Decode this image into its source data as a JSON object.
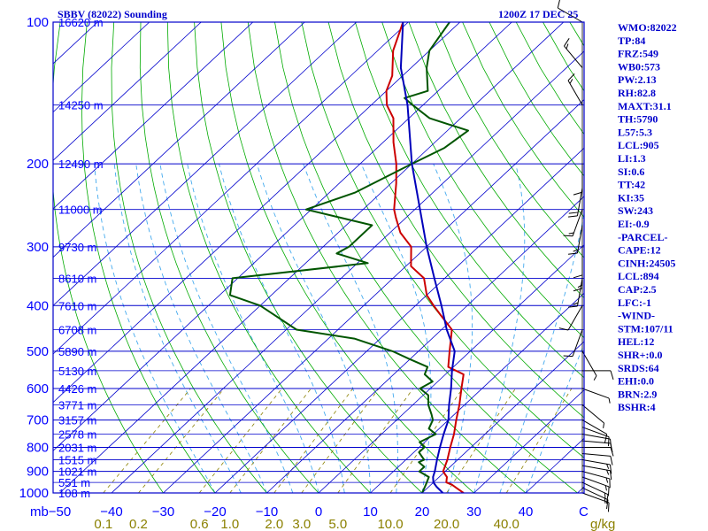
{
  "header": {
    "title_left": "SBBV (82022) Sounding",
    "title_right": "1200Z 17 DEC 25"
  },
  "indices": [
    "WMO:82022",
    "TP:84",
    "FRZ:549",
    "WB0:573",
    "PW:2.13",
    "RH:82.8",
    "MAXT:31.1",
    "TH:5790",
    "L57:5.3",
    "LCL:905",
    "LI:1.3",
    "SI:0.6",
    "TT:42",
    "KI:35",
    "SW:243",
    "EI:-0.9",
    "-PARCEL-",
    "CAPE:12",
    "CINH:24505",
    "LCL:894",
    "CAP:2.5",
    "LFC:-1",
    "-WIND-",
    "STM:107/11",
    "HEL:12",
    "SHR+:0.0",
    "SRDS:64",
    "EHI:0.0",
    "BRN:2.9",
    "BSHR:4"
  ],
  "colors": {
    "frame": "#0000cc",
    "isobar": "#0000cc",
    "isotherm": "#0000cc",
    "dry_adiabat": "#00aa00",
    "moist_adiabat": "#44aaee",
    "mixing_ratio": "#8b8000",
    "temperature": "#cc0000",
    "dewpoint": "#005500",
    "parcel": "#0000bb",
    "wind": "#000000"
  },
  "chart_data": {
    "type": "line",
    "chart_kind": "skew-T log-p",
    "ylabel": "mb",
    "xlabel": "C",
    "mixing_ratio_unit": "g/kg",
    "pressure_ticks": [
      "100",
      "200",
      "300",
      "400",
      "500",
      "600",
      "700",
      "800",
      "900",
      "1000"
    ],
    "pressure_range": [
      100,
      1000
    ],
    "pressure_levels": [
      100,
      200,
      300,
      400,
      500,
      600,
      700,
      800,
      900,
      1000
    ],
    "temperature_ticks": [
      "−50",
      "−40",
      "−30",
      "−20",
      "−10",
      "0",
      "10",
      "20",
      "30",
      "40"
    ],
    "temperature_values": [
      -50,
      -40,
      -30,
      -20,
      -10,
      0,
      10,
      20,
      30,
      40
    ],
    "mixing_ratio_labels": [
      "0.1",
      "0.2",
      "0.6",
      "1.0",
      "2.0",
      "3.0",
      "5.0",
      "10.0",
      "20.0",
      "40.0"
    ],
    "height_labels": [
      {
        "p": 100,
        "label": "16620 m"
      },
      {
        "p": 150,
        "label": "14250 m"
      },
      {
        "p": 200,
        "label": "12490 m"
      },
      {
        "p": 250,
        "label": "11000 m"
      },
      {
        "p": 300,
        "label": "9730 m"
      },
      {
        "p": 350,
        "label": "8610 m"
      },
      {
        "p": 400,
        "label": "7610 m"
      },
      {
        "p": 450,
        "label": "6708 m"
      },
      {
        "p": 500,
        "label": "5890 m"
      },
      {
        "p": 550,
        "label": "5130 m"
      },
      {
        "p": 600,
        "label": "4426 m"
      },
      {
        "p": 650,
        "label": "3771 m"
      },
      {
        "p": 700,
        "label": "3157 m"
      },
      {
        "p": 750,
        "label": "2578 m"
      },
      {
        "p": 800,
        "label": "2031 m"
      },
      {
        "p": 850,
        "label": "1515 m"
      },
      {
        "p": 900,
        "label": "1021 m"
      },
      {
        "p": 950,
        "label": "551 m"
      },
      {
        "p": 1000,
        "label": "108 m"
      }
    ],
    "series": [
      {
        "key": "temperature",
        "points": [
          [
            1000,
            28
          ],
          [
            980,
            26
          ],
          [
            960,
            24
          ],
          [
            950,
            22.5
          ],
          [
            925,
            21.5
          ],
          [
            900,
            19.6
          ],
          [
            850,
            18
          ],
          [
            800,
            16
          ],
          [
            750,
            14
          ],
          [
            700,
            11.5
          ],
          [
            650,
            9
          ],
          [
            600,
            6
          ],
          [
            560,
            3.5
          ],
          [
            540,
            -1
          ],
          [
            500,
            -4
          ],
          [
            450,
            -8
          ],
          [
            420,
            -13
          ],
          [
            400,
            -16.5
          ],
          [
            380,
            -20
          ],
          [
            350,
            -24
          ],
          [
            330,
            -29
          ],
          [
            300,
            -33
          ],
          [
            280,
            -38
          ],
          [
            260,
            -42
          ],
          [
            250,
            -44
          ],
          [
            220,
            -49
          ],
          [
            200,
            -53
          ],
          [
            180,
            -58
          ],
          [
            160,
            -63
          ],
          [
            150,
            -67
          ],
          [
            140,
            -70
          ],
          [
            130,
            -72
          ],
          [
            115,
            -77
          ],
          [
            100,
            -81
          ]
        ]
      },
      {
        "key": "dewpoint",
        "points": [
          [
            1000,
            20
          ],
          [
            980,
            19.5
          ],
          [
            960,
            19
          ],
          [
            925,
            18
          ],
          [
            900,
            15
          ],
          [
            880,
            15
          ],
          [
            860,
            13
          ],
          [
            850,
            13.5
          ],
          [
            820,
            11
          ],
          [
            800,
            11
          ],
          [
            780,
            9
          ],
          [
            750,
            10.5
          ],
          [
            730,
            8
          ],
          [
            700,
            7
          ],
          [
            680,
            5.5
          ],
          [
            650,
            3
          ],
          [
            620,
            1
          ],
          [
            600,
            -2
          ],
          [
            580,
            -1
          ],
          [
            560,
            -4
          ],
          [
            540,
            -5
          ],
          [
            520,
            -10
          ],
          [
            500,
            -15
          ],
          [
            470,
            -25
          ],
          [
            450,
            -38
          ],
          [
            400,
            -50
          ],
          [
            380,
            -58
          ],
          [
            350,
            -61
          ],
          [
            325,
            -38
          ],
          [
            310,
            -46
          ],
          [
            300,
            -45
          ],
          [
            270,
            -45
          ],
          [
            250,
            -61
          ],
          [
            230,
            -55
          ],
          [
            200,
            -50
          ],
          [
            185,
            -47
          ],
          [
            170,
            -46
          ],
          [
            160,
            -56
          ],
          [
            150,
            -62
          ],
          [
            145,
            -65
          ],
          [
            140,
            -62
          ],
          [
            125,
            -67
          ],
          [
            115,
            -70
          ],
          [
            100,
            -72
          ]
        ]
      },
      {
        "key": "parcel",
        "points": [
          [
            1000,
            24
          ],
          [
            970,
            21.5
          ],
          [
            950,
            20
          ],
          [
            925,
            18.8
          ],
          [
            900,
            18
          ],
          [
            850,
            16
          ],
          [
            800,
            14
          ],
          [
            750,
            12
          ],
          [
            700,
            10
          ],
          [
            650,
            7
          ],
          [
            600,
            4
          ],
          [
            550,
            0.5
          ],
          [
            500,
            -3
          ],
          [
            450,
            -9
          ],
          [
            400,
            -15
          ],
          [
            350,
            -22
          ],
          [
            300,
            -30
          ],
          [
            250,
            -39
          ],
          [
            200,
            -50
          ],
          [
            150,
            -63
          ],
          [
            125,
            -72
          ],
          [
            100,
            -81
          ]
        ]
      }
    ],
    "wind_barbs": [
      {
        "p": 1000,
        "dir": 110,
        "spd": 10
      },
      {
        "p": 975,
        "dir": 115,
        "spd": 15
      },
      {
        "p": 950,
        "dir": 115,
        "spd": 15
      },
      {
        "p": 925,
        "dir": 110,
        "spd": 15
      },
      {
        "p": 900,
        "dir": 105,
        "spd": 15
      },
      {
        "p": 875,
        "dir": 100,
        "spd": 15
      },
      {
        "p": 850,
        "dir": 100,
        "spd": 15
      },
      {
        "p": 825,
        "dir": 95,
        "spd": 10
      },
      {
        "p": 800,
        "dir": 90,
        "spd": 10
      },
      {
        "p": 775,
        "dir": 95,
        "spd": 10
      },
      {
        "p": 750,
        "dir": 100,
        "spd": 10
      },
      {
        "p": 725,
        "dir": 110,
        "spd": 10
      },
      {
        "p": 700,
        "dir": 120,
        "spd": 10
      },
      {
        "p": 650,
        "dir": 130,
        "spd": 5
      },
      {
        "p": 600,
        "dir": 110,
        "spd": 5
      },
      {
        "p": 550,
        "dir": 90,
        "spd": 10
      },
      {
        "p": 500,
        "dir": 150,
        "spd": 5
      },
      {
        "p": 450,
        "dir": 200,
        "spd": 10
      },
      {
        "p": 400,
        "dir": 210,
        "spd": 10
      },
      {
        "p": 350,
        "dir": 190,
        "spd": 15
      },
      {
        "p": 320,
        "dir": 180,
        "spd": 15
      },
      {
        "p": 300,
        "dir": 180,
        "spd": 10
      },
      {
        "p": 270,
        "dir": 190,
        "spd": 15
      },
      {
        "p": 250,
        "dir": 200,
        "spd": 15
      },
      {
        "p": 225,
        "dir": 190,
        "spd": 20
      },
      {
        "p": 200,
        "dir": 180,
        "spd": 10
      },
      {
        "p": 150,
        "dir": 330,
        "spd": 15
      },
      {
        "p": 125,
        "dir": 320,
        "spd": 15
      },
      {
        "p": 100,
        "dir": 300,
        "spd": 10
      }
    ]
  }
}
